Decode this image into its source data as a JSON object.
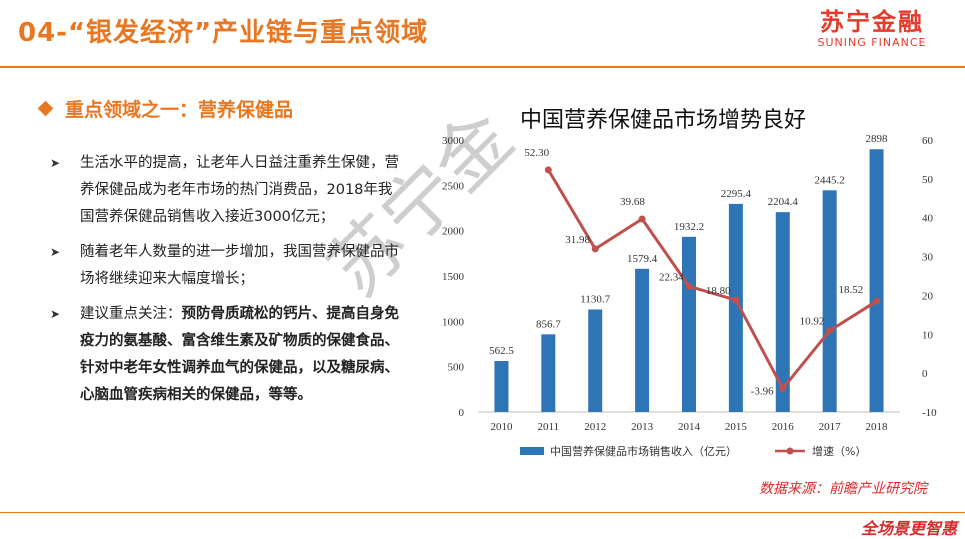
{
  "header": {
    "title": "04-“银发经济”产业链与重点领域",
    "logo_cn": "苏宁金融",
    "logo_en": "SUNING FINANCE"
  },
  "section": {
    "heading": "重点领域之一：营养保健品"
  },
  "bullets": [
    {
      "text": "生活水平的提高，让老年人日益注重养生保健，营养保健品成为老年市场的热门消费品，2018年我国营养保健品销售收入接近3000亿元；"
    },
    {
      "text": "随着老年人数量的进一步增加，我国营养保健品市场将继续迎来大幅度增长；"
    },
    {
      "prefix": "建议重点关注：",
      "text": "预防骨质疏松的钙片、提高自身免疫力的氨基酸、富含维生素及矿物质的保健食品、针对中老年女性调养血气的保健品，以及糖尿病、心脑血管疾病相关的保健品，等等。"
    }
  ],
  "watermark": "苏宁金",
  "source_note": "数据来源：前瞻产业研究院",
  "footer_stamp": "全场景更智惠",
  "colors": {
    "accent": "#e87722",
    "bar": "#2e75b6",
    "line": "#c0504d",
    "source": "#d62c2c"
  },
  "chart_data": {
    "type": "bar",
    "title": "中国营养保健品市场增势良好",
    "categories": [
      "2010",
      "2011",
      "2012",
      "2013",
      "2014",
      "2015",
      "2016",
      "2017",
      "2018"
    ],
    "series": [
      {
        "name": "中国营养保健品市场销售收入（亿元）",
        "type": "bar",
        "axis": "left",
        "values": [
          562.5,
          856.7,
          1130.7,
          1579.4,
          1932.2,
          2295.4,
          2204.4,
          2445.2,
          2898
        ],
        "labels": [
          "562.5",
          "856.7",
          "1130.7",
          "1579.4",
          "1932.2",
          "2295.4",
          "2204.4",
          "2445.2",
          "2898"
        ]
      },
      {
        "name": "增速（%）",
        "type": "line",
        "axis": "right",
        "values": [
          null,
          52.3,
          31.98,
          39.68,
          22.34,
          18.8,
          -3.96,
          10.92,
          18.52
        ],
        "labels": [
          "",
          "52.30",
          "31.98",
          "39.68",
          "22.34",
          "18.80",
          "-3.96",
          "10.92",
          "18.52"
        ]
      }
    ],
    "ylim_left": [
      0,
      3000
    ],
    "yticks_left": [
      "0",
      "500",
      "1000",
      "1500",
      "2000",
      "2500",
      "3000"
    ],
    "ylim_right": [
      -10,
      60
    ],
    "yticks_right": [
      "-10",
      "0",
      "10",
      "20",
      "30",
      "40",
      "50",
      "60"
    ],
    "grid": false,
    "legend": "bottom"
  }
}
